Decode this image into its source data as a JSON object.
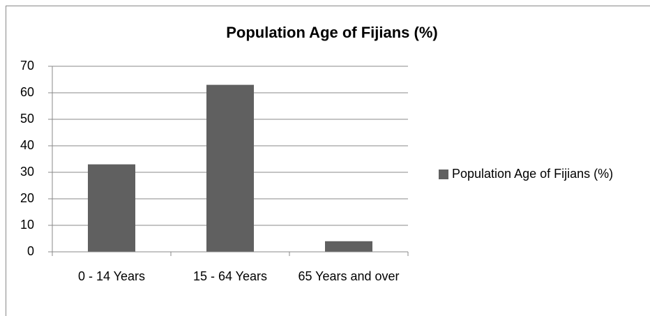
{
  "chart_data": {
    "type": "bar",
    "title": "Population Age of Fijians (%)",
    "categories": [
      "0 - 14 Years",
      "15 - 64 Years",
      "65 Years and over"
    ],
    "series": [
      {
        "name": "Population Age of Fijians (%)",
        "color": "#606060",
        "values": [
          33,
          63,
          4
        ]
      }
    ],
    "ylim": [
      0,
      70
    ],
    "yticks": [
      0,
      10,
      20,
      30,
      40,
      50,
      60,
      70
    ],
    "grid": true,
    "legend": "right"
  }
}
